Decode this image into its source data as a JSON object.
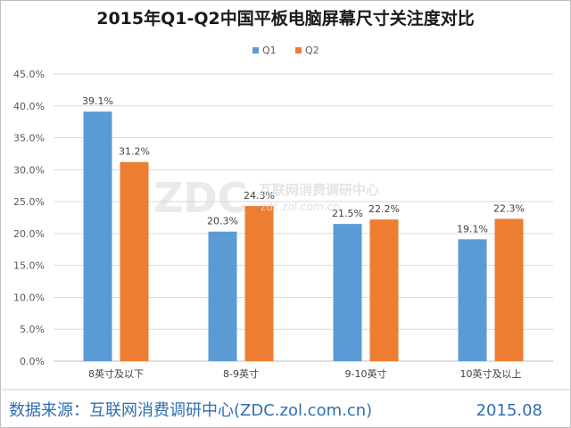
{
  "chart_data": {
    "type": "bar",
    "title": "2015年Q1-Q2中国平板电脑屏幕尺寸关注度对比",
    "categories": [
      "8英寸及以下",
      "8-9英寸",
      "9-10英寸",
      "10英寸及以上"
    ],
    "series": [
      {
        "name": "Q1",
        "values": [
          39.1,
          20.3,
          21.5,
          19.1
        ],
        "labels": [
          "39.1%",
          "20.3%",
          "21.5%",
          "19.1%"
        ],
        "color": "#5b9bd5"
      },
      {
        "name": "Q2",
        "values": [
          31.2,
          24.3,
          22.2,
          22.3
        ],
        "labels": [
          "31.2%",
          "24.3%",
          "22.2%",
          "22.3%"
        ],
        "color": "#ed7d31"
      }
    ],
    "ylim": [
      0,
      45
    ],
    "yticks": [
      0,
      5,
      10,
      15,
      20,
      25,
      30,
      35,
      40,
      45
    ],
    "ytick_labels": [
      "0.0%",
      "5.0%",
      "10.0%",
      "15.0%",
      "20.0%",
      "25.0%",
      "30.0%",
      "35.0%",
      "40.0%",
      "45.0%"
    ],
    "xlabel": "",
    "ylabel": "",
    "grid": true,
    "legend_position": "top-center"
  },
  "watermark": {
    "logo": "ZDC",
    "name": "互联网消费调研中心",
    "url": "zdc.zol.com.cn"
  },
  "footer": {
    "source": "数据来源：互联网消费调研中心(ZDC.zol.com.cn)",
    "date": "2015.08",
    "color": "#2f6fb0"
  }
}
